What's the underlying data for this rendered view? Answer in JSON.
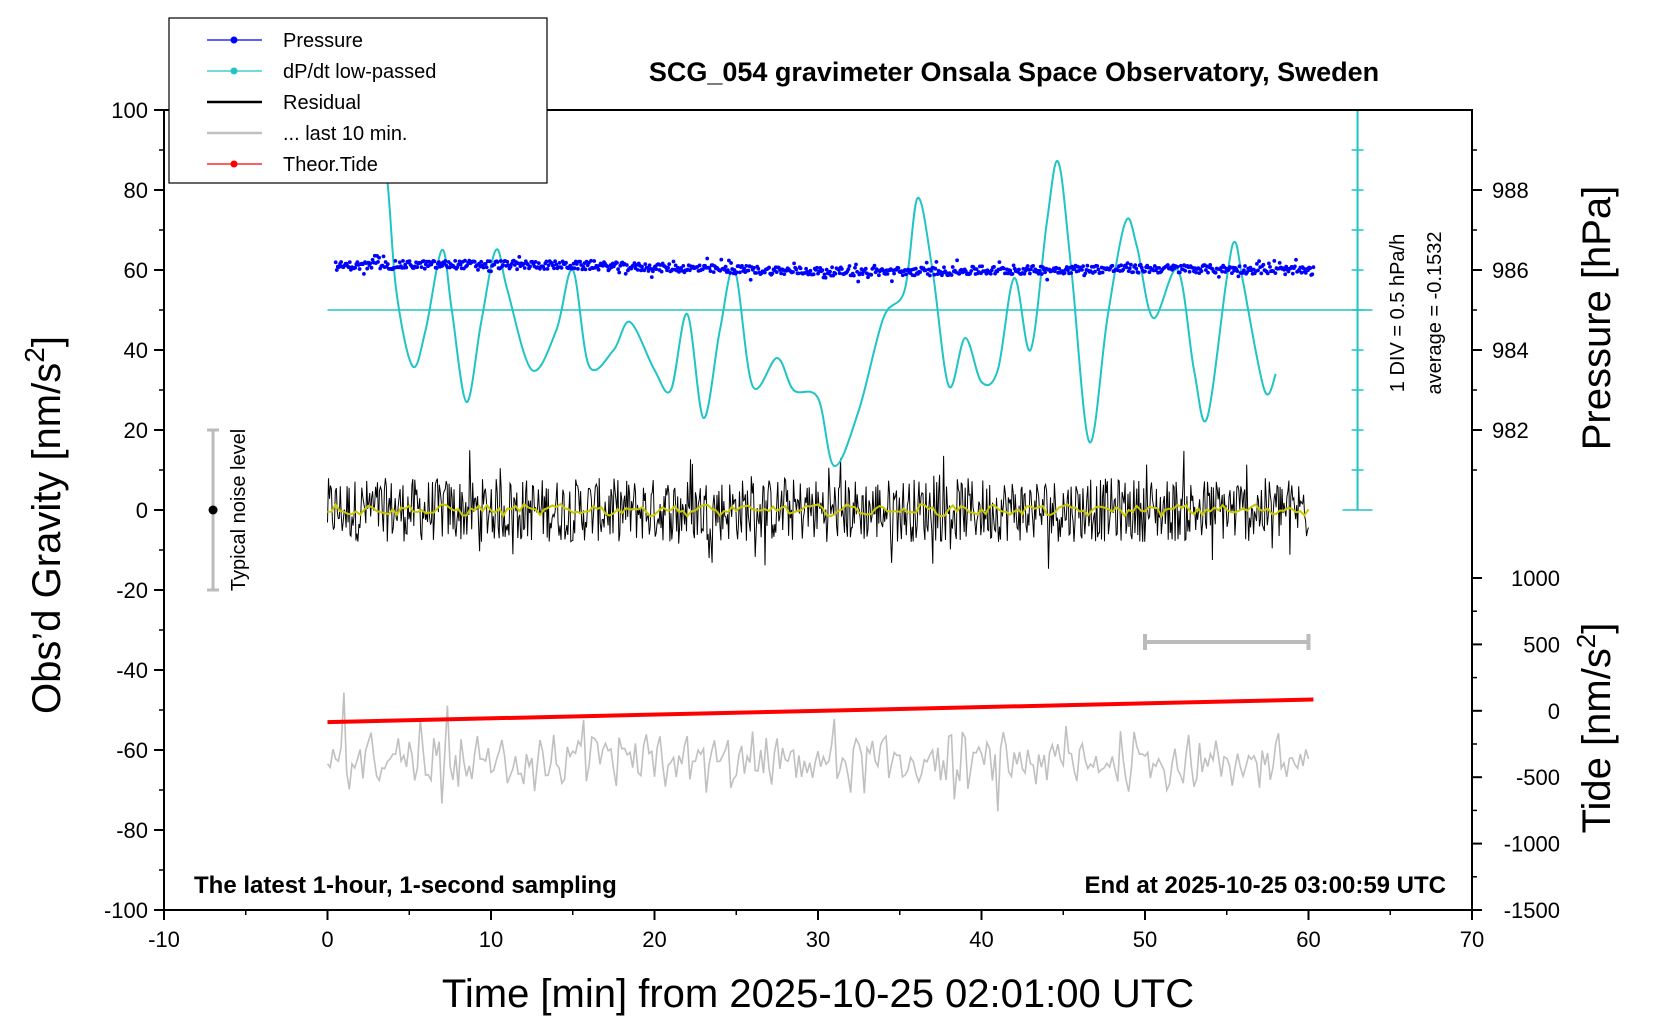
{
  "chart_data": {
    "type": "line",
    "title": "SCG_054 gravimeter Onsala Space Observatory, Sweden",
    "xlabel": "Time [min] from 2025-10-25 02:01:00 UTC",
    "ylabel_left": "Obs’d Gravity [nm/s2]",
    "ylabel_left_main": "Obs’d Gravity [nm/s",
    "ylabel_left_sup": "2",
    "ylabel_left_end": "]",
    "ylabel_right_pressure": "Pressure [hPa]",
    "ylabel_right_tide": "Tide [nm/s2]",
    "ylabel_right_tide_main": "Tide [nm/s",
    "ylabel_right_tide_sup": "2",
    "ylabel_right_tide_end": "]",
    "xlim": [
      -10,
      70
    ],
    "ylim": [
      -100,
      100
    ],
    "x_ticks": [
      "-10",
      "0",
      "10",
      "20",
      "30",
      "40",
      "50",
      "60",
      "70"
    ],
    "y_ticks": [
      "100",
      "80",
      "60",
      "40",
      "20",
      "0",
      "-20",
      "-40",
      "-60",
      "-80",
      "-100"
    ],
    "pressure_ticks": [
      "988",
      "986",
      "984",
      "982"
    ],
    "pressure_range_label": [
      982,
      988
    ],
    "tide_ticks": [
      "1000",
      "500",
      "0",
      "-500",
      "-1000",
      "-1500"
    ],
    "tide_range": [
      -1500,
      1000
    ],
    "legend": [
      {
        "label": "Pressure",
        "color": "#0000ff",
        "marker": true
      },
      {
        "label": "dP/dt low-passed",
        "color": "#20c4c4",
        "marker": true
      },
      {
        "label": "Residual",
        "color": "#000000",
        "marker": false
      },
      {
        "label": "... last 10 min.",
        "color": "#c0c0c0",
        "marker": false
      },
      {
        "label": "Theor.Tide",
        "color": "#ff0000",
        "marker": true
      }
    ],
    "annotations": {
      "footer_left": "The latest 1-hour, 1-second sampling",
      "footer_right": "End at 2025-10-25 03:00:59 UTC",
      "noise": "Typical noise level",
      "dpdt_div": "1 DIV = 0.5 hPa/h",
      "dpdt_avg": "average = -0.1532"
    },
    "noise_bar": {
      "x": -7,
      "center": 0,
      "half_range": 20
    },
    "last10_bar": {
      "x_start": 50,
      "x_end": 60,
      "y": -33
    },
    "dpdt_scale": {
      "x": 63,
      "y_top": 100,
      "y_bottom": 0,
      "baseline_y": 50
    },
    "series": [
      {
        "name": "Pressure",
        "color": "#0000ff",
        "x_range": [
          0.5,
          60.3
        ],
        "gravity_equiv_start": 61,
        "gravity_equiv_end": 59.5,
        "scatter_amplitude": 1.5
      },
      {
        "name": "dP/dt low-passed",
        "color": "#20c4c4",
        "points": [
          [
            2.3,
            100
          ],
          [
            3.5,
            88
          ],
          [
            4.2,
            55
          ],
          [
            5.2,
            36
          ],
          [
            6.0,
            45
          ],
          [
            7.0,
            65
          ],
          [
            7.6,
            50
          ],
          [
            8.5,
            27
          ],
          [
            9.4,
            47
          ],
          [
            10.3,
            65
          ],
          [
            11.0,
            55
          ],
          [
            12.5,
            35
          ],
          [
            14.0,
            45
          ],
          [
            15.0,
            60
          ],
          [
            16.0,
            36
          ],
          [
            17.5,
            40
          ],
          [
            18.5,
            47
          ],
          [
            20.0,
            35
          ],
          [
            21.0,
            30
          ],
          [
            22.0,
            49
          ],
          [
            23.0,
            23
          ],
          [
            24.0,
            45
          ],
          [
            24.9,
            60
          ],
          [
            26.0,
            31
          ],
          [
            27.5,
            38
          ],
          [
            28.5,
            30
          ],
          [
            30.0,
            28
          ],
          [
            31.0,
            11
          ],
          [
            32.5,
            25
          ],
          [
            34.0,
            48
          ],
          [
            35.3,
            55
          ],
          [
            36.1,
            78
          ],
          [
            37.0,
            60
          ],
          [
            38.0,
            31
          ],
          [
            39.0,
            43
          ],
          [
            40.0,
            32
          ],
          [
            41.0,
            35
          ],
          [
            42.0,
            58
          ],
          [
            43.0,
            40
          ],
          [
            44.0,
            72
          ],
          [
            44.7,
            87
          ],
          [
            45.5,
            60
          ],
          [
            46.6,
            17
          ],
          [
            47.7,
            48
          ],
          [
            48.8,
            72
          ],
          [
            49.5,
            66
          ],
          [
            50.5,
            48
          ],
          [
            52.0,
            60
          ],
          [
            53.0,
            35
          ],
          [
            53.8,
            23
          ],
          [
            55.0,
            58
          ],
          [
            55.5,
            67
          ],
          [
            56.0,
            57
          ],
          [
            57.3,
            30
          ],
          [
            58.0,
            34
          ]
        ]
      },
      {
        "name": "Residual",
        "color": "#000000",
        "x_range": [
          0,
          60
        ],
        "center": 0,
        "amplitude_nm_s2": 8
      },
      {
        "name": "Residual smoothed",
        "color": "#c8c800",
        "x_range": [
          0,
          60
        ],
        "center": 0,
        "amplitude_nm_s2": 1
      },
      {
        "name": "... last 10 min.",
        "color": "#c0c0c0",
        "x_range": [
          0,
          60
        ],
        "center": -63,
        "amplitude_nm_s2": 5
      },
      {
        "name": "Theor.Tide",
        "color": "#ff0000",
        "x_range": [
          0,
          60.3
        ],
        "tide_start": -85,
        "tide_end": 85
      }
    ]
  }
}
